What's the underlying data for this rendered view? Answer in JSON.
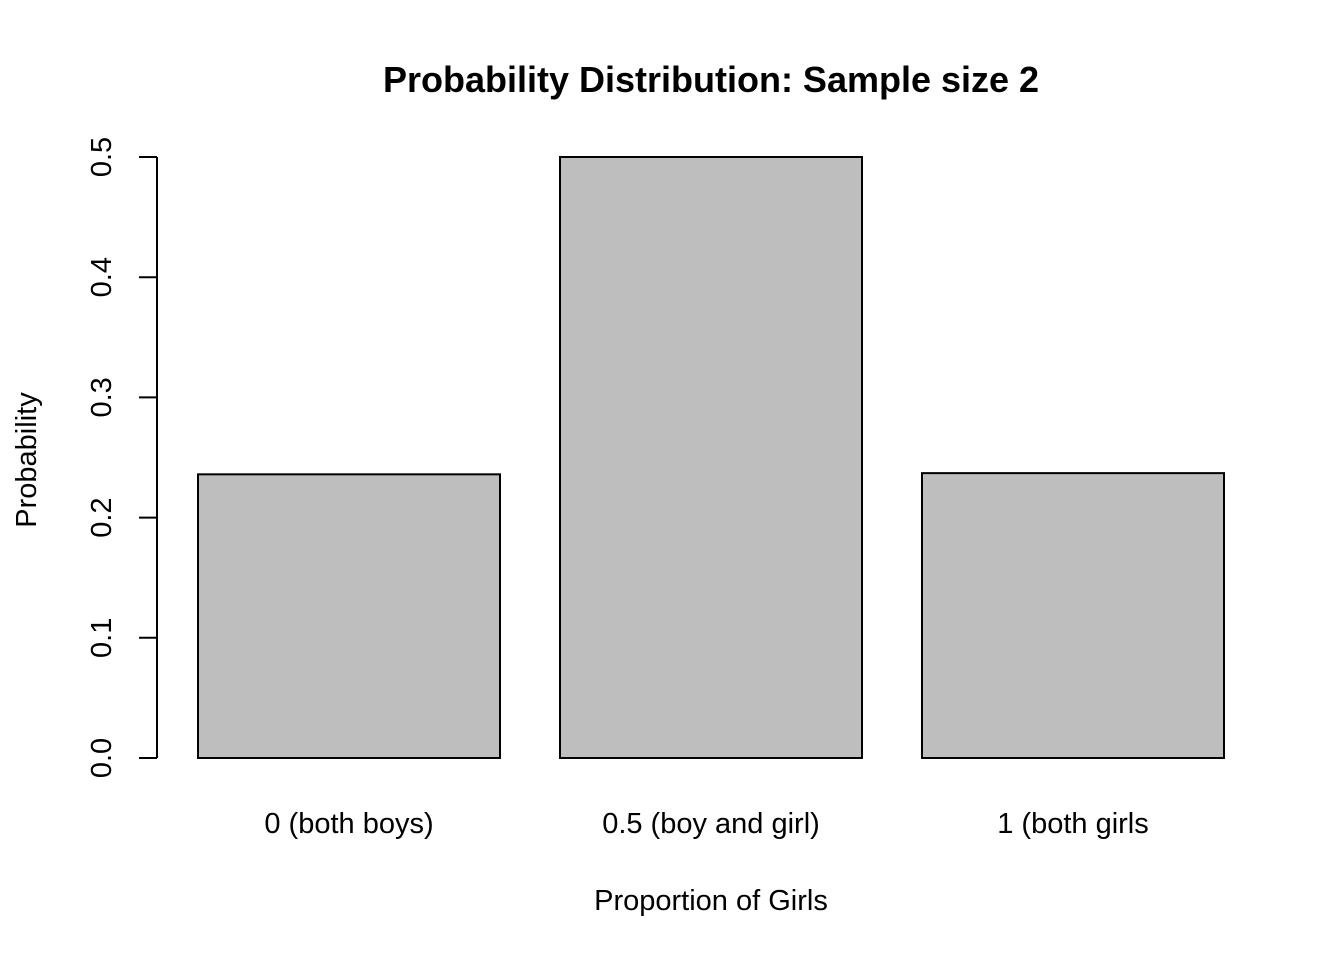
{
  "chart_data": {
    "type": "bar",
    "title": "Probability Distribution: Sample size 2",
    "xlabel": "Proportion of Girls",
    "ylabel": "Probability",
    "categories": [
      "0 (both boys)",
      "0.5 (boy and girl)",
      "1 (both girls"
    ],
    "values": [
      0.236,
      0.5,
      0.237
    ],
    "ylim": [
      0,
      0.5
    ],
    "yticks": [
      0.0,
      0.1,
      0.2,
      0.3,
      0.4,
      0.5
    ],
    "ytick_labels": [
      "0.0",
      "0.1",
      "0.2",
      "0.3",
      "0.4",
      "0.5"
    ],
    "bar_color": "#bebebe",
    "grid": false
  }
}
